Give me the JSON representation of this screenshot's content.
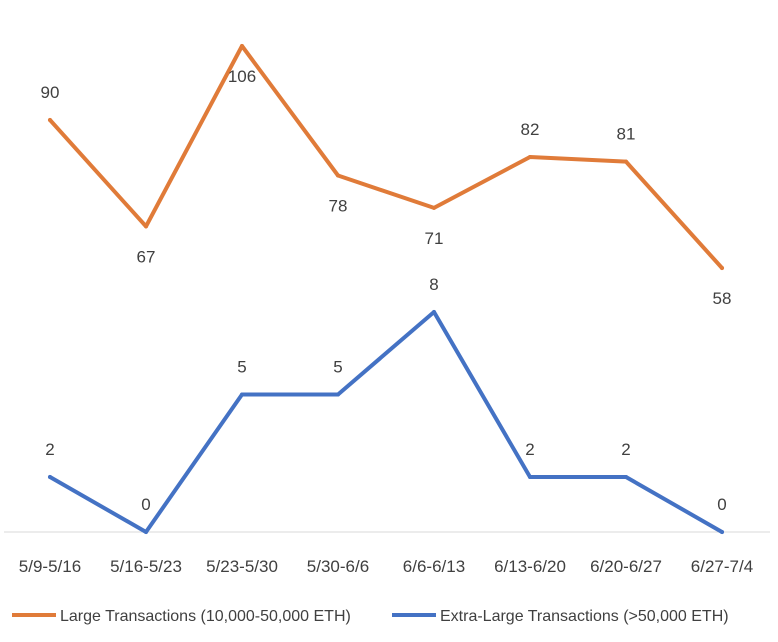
{
  "chart_data": {
    "type": "line",
    "categories": [
      "5/9-5/16",
      "5/16-5/23",
      "5/23-5/30",
      "5/30-6/6",
      "6/6-6/13",
      "6/13-6/20",
      "6/20-6/27",
      "6/27-7/4"
    ],
    "series": [
      {
        "name": "Large Transactions (10,000-50,000 ETH)",
        "values": [
          90,
          67,
          106,
          78,
          71,
          82,
          81,
          58
        ],
        "color": "#E07B39"
      },
      {
        "name": "Extra-Large Transactions (>50,000 ETH)",
        "values": [
          2,
          0,
          5,
          5,
          8,
          2,
          2,
          0
        ],
        "color": "#4472C4"
      }
    ],
    "data_labels": true,
    "legend_position": "bottom",
    "grid": false
  }
}
